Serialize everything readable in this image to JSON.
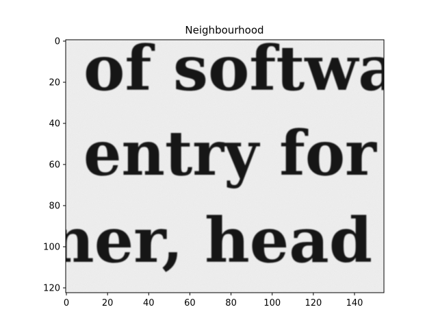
{
  "title": "Neighbourhood",
  "image": {
    "background_color": "#efefef",
    "ink_color": "#151515",
    "text_lines": [
      "of softwa",
      "entry for",
      "ner, head"
    ]
  },
  "axes": {
    "x_ticks": [
      "0",
      "20",
      "40",
      "60",
      "80",
      "100",
      "120",
      "140"
    ],
    "y_ticks": [
      "0",
      "20",
      "40",
      "60",
      "80",
      "100",
      "120"
    ],
    "grid": false
  }
}
